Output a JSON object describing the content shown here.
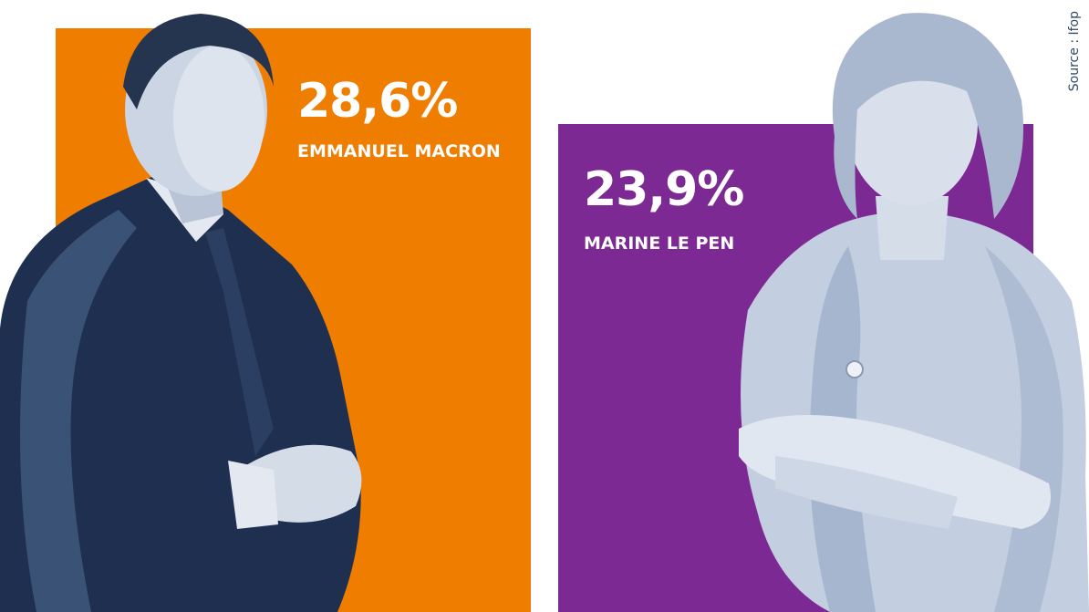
{
  "source": "Source : Ifop",
  "colors": {
    "macron": "#ee7d00",
    "lepen": "#7d2993",
    "photo_dark": "#1f2f50",
    "photo_light": "#c7d2e3"
  },
  "chart_data": {
    "type": "bar",
    "categories": [
      "EMMANUEL MACRON",
      "MARINE LE PEN"
    ],
    "values": [
      28.6,
      23.9
    ],
    "value_labels": [
      "28,6%",
      "23,9%"
    ],
    "unit": "%",
    "ylim": [
      0,
      28.6
    ],
    "title": "",
    "xlabel": "",
    "ylabel": ""
  }
}
